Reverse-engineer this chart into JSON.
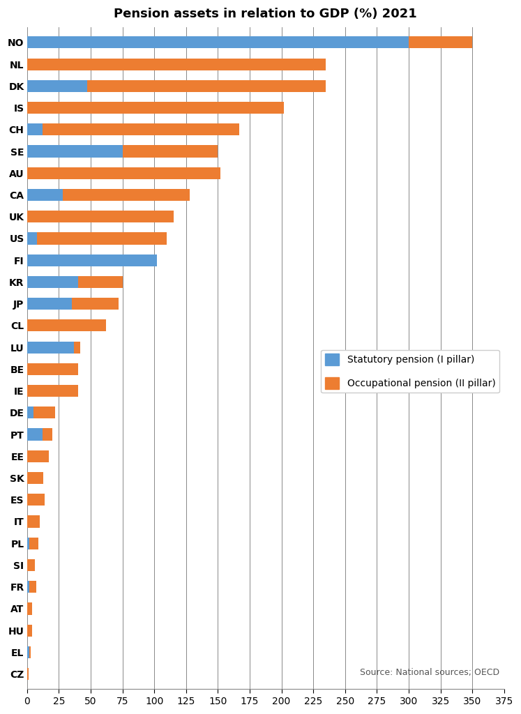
{
  "title": "Pension assets in relation to GDP (%) 2021",
  "countries": [
    "NO",
    "NL",
    "DK",
    "IS",
    "CH",
    "SE",
    "AU",
    "CA",
    "UK",
    "US",
    "FI",
    "KR",
    "JP",
    "CL",
    "LU",
    "BE",
    "IE",
    "DE",
    "PT",
    "EE",
    "SK",
    "ES",
    "IT",
    "PL",
    "SI",
    "FR",
    "AT",
    "HU",
    "EL",
    "CZ"
  ],
  "pillar1": [
    300,
    0,
    47,
    0,
    12,
    75,
    0,
    28,
    0,
    8,
    102,
    40,
    35,
    0,
    37,
    0,
    0,
    5,
    12,
    0,
    0,
    0,
    0,
    2,
    0,
    2,
    0,
    0,
    2,
    0
  ],
  "pillar2": [
    50,
    235,
    188,
    202,
    155,
    75,
    152,
    100,
    115,
    102,
    0,
    35,
    37,
    62,
    5,
    40,
    40,
    17,
    8,
    17,
    13,
    14,
    10,
    7,
    6,
    5,
    4,
    4,
    1,
    1
  ],
  "color_pillar1": "#5b9bd5",
  "color_pillar2": "#ed7d31",
  "legend_pillar1": "Statutory pension (I pillar)",
  "legend_pillar2": "Occupational pension (II pillar)",
  "source_text": "Source: National sources; OECD",
  "xlim": [
    0,
    375
  ],
  "xticks": [
    0,
    25,
    50,
    75,
    100,
    125,
    150,
    175,
    200,
    225,
    250,
    275,
    300,
    325,
    350,
    375
  ],
  "background_color": "#ffffff",
  "title_fontsize": 13,
  "tick_fontsize": 10
}
